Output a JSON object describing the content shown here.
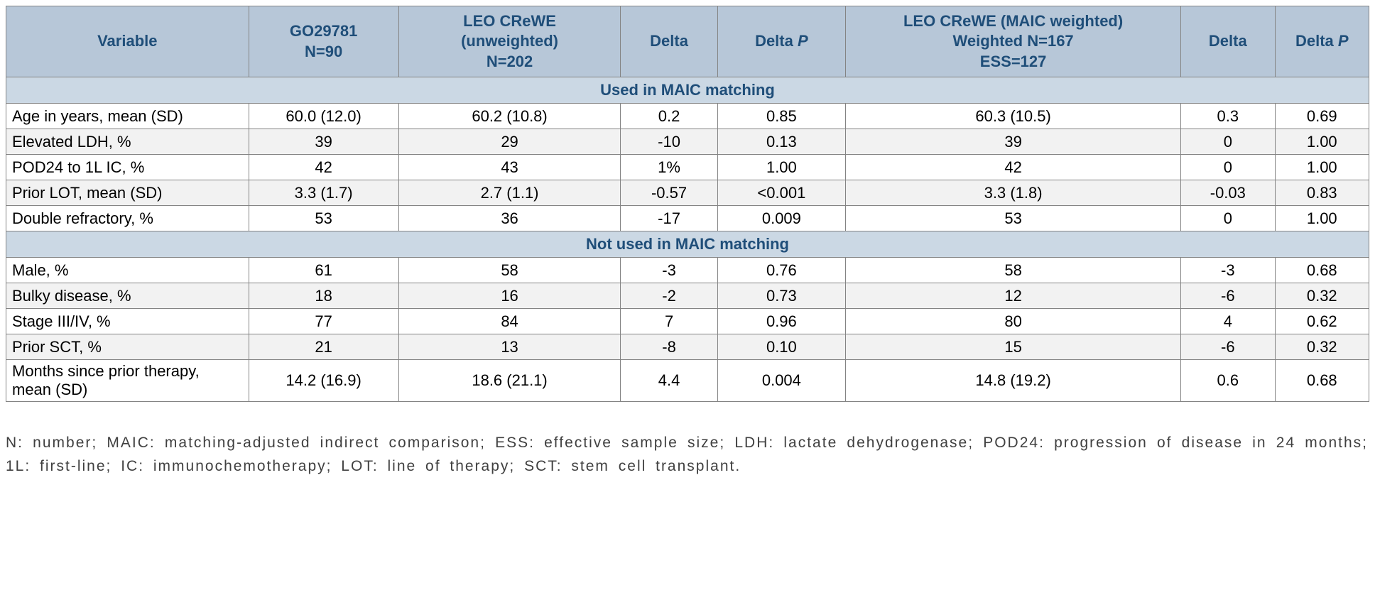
{
  "colors": {
    "header_bg": "#b7c7d8",
    "header_text": "#1f4e79",
    "section_bg": "#cbd8e4",
    "row_alt_bg": "#f2f2f2",
    "border": "#848484",
    "footnote_text": "#404040"
  },
  "table": {
    "columns": [
      {
        "label": "Variable"
      },
      {
        "label": "GO29781|N=90"
      },
      {
        "label": "LEO CReWE|(unweighted)|N=202"
      },
      {
        "label": "Delta"
      },
      {
        "label": "Delta P",
        "italic_last": true
      },
      {
        "label": "LEO CReWE (MAIC weighted)|Weighted N=167|ESS=127"
      },
      {
        "label": "Delta"
      },
      {
        "label": "Delta P",
        "italic_last": true
      }
    ],
    "sections": [
      {
        "title": "Used in MAIC matching",
        "rows": [
          [
            "Age in years, mean (SD)",
            "60.0 (12.0)",
            "60.2 (10.8)",
            "0.2",
            "0.85",
            "60.3 (10.5)",
            "0.3",
            "0.69"
          ],
          [
            "Elevated LDH, %",
            "39",
            "29",
            "-10",
            "0.13",
            "39",
            "0",
            "1.00"
          ],
          [
            "POD24 to 1L IC, %",
            "42",
            "43",
            "1%",
            "1.00",
            "42",
            "0",
            "1.00"
          ],
          [
            "Prior LOT, mean (SD)",
            "3.3 (1.7)",
            "2.7 (1.1)",
            "-0.57",
            "<0.001",
            "3.3 (1.8)",
            "-0.03",
            "0.83"
          ],
          [
            "Double refractory, %",
            "53",
            "36",
            "-17",
            "0.009",
            "53",
            "0",
            "1.00"
          ]
        ]
      },
      {
        "title": "Not used in MAIC matching",
        "rows": [
          [
            "Male, %",
            "61",
            "58",
            "-3",
            "0.76",
            "58",
            "-3",
            "0.68"
          ],
          [
            "Bulky disease, %",
            "18",
            "16",
            "-2",
            "0.73",
            "12",
            "-6",
            "0.32"
          ],
          [
            "Stage III/IV, %",
            "77",
            "84",
            "7",
            "0.96",
            "80",
            "4",
            "0.62"
          ],
          [
            "Prior SCT, %",
            "21",
            "13",
            "-8",
            "0.10",
            "15",
            "-6",
            "0.32"
          ],
          [
            "Months since prior therapy, mean (SD)",
            "14.2 (16.9)",
            "18.6 (21.1)",
            "4.4",
            "0.004",
            "14.8 (19.2)",
            "0.6",
            "0.68"
          ]
        ]
      }
    ]
  },
  "footnote": "N: number; MAIC: matching-adjusted indirect comparison; ESS: effective sample size; LDH: lactate dehydrogenase; POD24: progression of disease in 24 months; 1L: first-line; IC: immunochemotherapy; LOT: line of therapy; SCT: stem cell transplant."
}
